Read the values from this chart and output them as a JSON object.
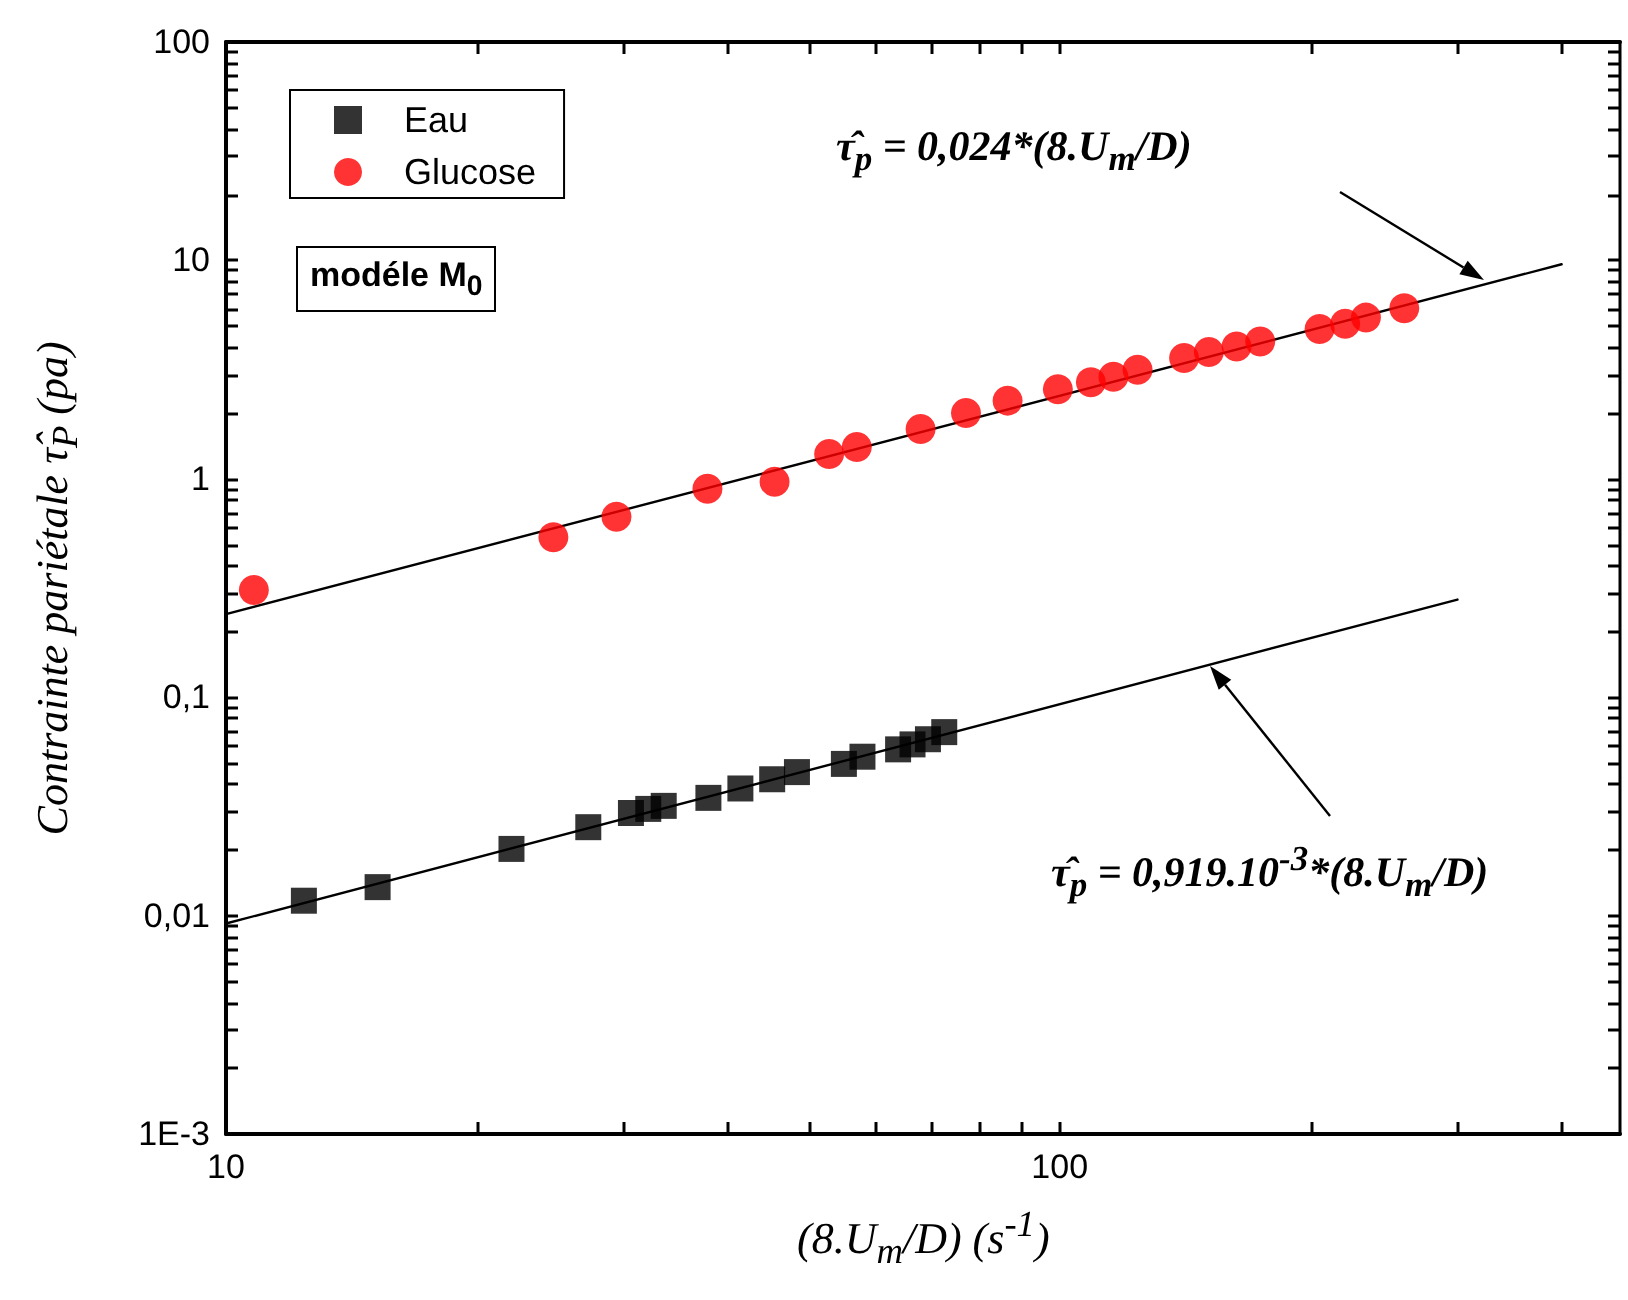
{
  "chart_data": {
    "type": "scatter",
    "xlabel": "(8.U$_{m}$/D)  (s$^{-1}$)",
    "ylabel": "Contrainte pariétale  τ̂$_{P}$ (pa)",
    "log": "xy",
    "grid": false,
    "legend": "top left",
    "xlim": [
      10,
      470
    ],
    "xticks": [
      10,
      {
        "value": 20,
        "label": null
      },
      {
        "value": 30,
        "label": null
      },
      {
        "value": 40,
        "label": null
      },
      {
        "value": 50,
        "label": null
      },
      {
        "value": 60,
        "label": null
      },
      {
        "value": 70,
        "label": null
      },
      {
        "value": 80,
        "label": null
      },
      {
        "value": 90,
        "label": null
      },
      100,
      {
        "value": 200,
        "label": null
      },
      {
        "value": 300,
        "label": null
      },
      {
        "value": 400,
        "label": null
      }
    ],
    "ylim": [
      0.001,
      100
    ],
    "yticks": [
      {
        "value": 0.001,
        "label": "1E-3"
      },
      {
        "value": 0.002,
        "label": null
      },
      {
        "value": 0.003,
        "label": null
      },
      {
        "value": 0.004,
        "label": null
      },
      {
        "value": 0.005,
        "label": null
      },
      {
        "value": 0.006,
        "label": null
      },
      {
        "value": 0.007,
        "label": null
      },
      {
        "value": 0.008,
        "label": null
      },
      {
        "value": 0.009,
        "label": null
      },
      {
        "value": 0.01,
        "label": "0,01"
      },
      {
        "value": 0.02,
        "label": null
      },
      {
        "value": 0.03,
        "label": null
      },
      {
        "value": 0.04,
        "label": null
      },
      {
        "value": 0.05,
        "label": null
      },
      {
        "value": 0.06,
        "label": null
      },
      {
        "value": 0.07,
        "label": null
      },
      {
        "value": 0.08,
        "label": null
      },
      {
        "value": 0.09,
        "label": null
      },
      {
        "value": 0.1,
        "label": "0,1"
      },
      {
        "value": 0.2,
        "label": null
      },
      {
        "value": 0.3,
        "label": null
      },
      {
        "value": 0.4,
        "label": null
      },
      {
        "value": 0.5,
        "label": null
      },
      {
        "value": 0.6,
        "label": null
      },
      {
        "value": 0.7,
        "label": null
      },
      {
        "value": 0.8,
        "label": null
      },
      {
        "value": 0.9,
        "label": null
      },
      1,
      {
        "value": 2,
        "label": null
      },
      {
        "value": 3,
        "label": null
      },
      {
        "value": 4,
        "label": null
      },
      {
        "value": 5,
        "label": null
      },
      {
        "value": 6,
        "label": null
      },
      {
        "value": 7,
        "label": null
      },
      {
        "value": 8,
        "label": null
      },
      {
        "value": 9,
        "label": null
      },
      10,
      {
        "value": 20,
        "label": null
      },
      {
        "value": 30,
        "label": null
      },
      {
        "value": 40,
        "label": null
      },
      {
        "value": 50,
        "label": null
      },
      {
        "value": 60,
        "label": null
      },
      {
        "value": 70,
        "label": null
      },
      {
        "value": 80,
        "label": null
      },
      {
        "value": 90,
        "label": null
      },
      100
    ],
    "series": [
      {
        "name": "Eau",
        "color": "#000000",
        "marker": "square",
        "x": [
          12.4,
          15.2,
          22.0,
          27.2,
          30.6,
          32.1,
          33.5,
          37.9,
          41.4,
          45.2,
          48.4,
          55.1,
          58.0,
          64.0,
          66.6,
          69.5,
          72.7
        ],
        "values": [
          0.0117,
          0.0135,
          0.0202,
          0.0254,
          0.0295,
          0.0308,
          0.0318,
          0.0346,
          0.0382,
          0.0421,
          0.0454,
          0.0495,
          0.0534,
          0.0577,
          0.0608,
          0.0642,
          0.0692
        ]
      },
      {
        "name": "Glucose",
        "color": "#ff0000",
        "marker": "circle",
        "x": [
          10.8,
          24.7,
          29.4,
          37.8,
          45.5,
          52.9,
          57.1,
          68.1,
          77.2,
          86.6,
          99.5,
          109,
          116,
          124,
          141,
          151,
          163,
          174,
          205,
          220,
          233,
          259
        ],
        "values": [
          0.31,
          0.54,
          0.67,
          0.9,
          0.97,
          1.3,
          1.4,
          1.69,
          2.0,
          2.28,
          2.57,
          2.77,
          2.93,
          3.16,
          3.57,
          3.81,
          4.03,
          4.25,
          4.85,
          5.13,
          5.47,
          6.04
        ]
      },
      {
        "type": "line",
        "color": "#000000",
        "marker": "none",
        "line_style": "solid",
        "x": [
          10,
          400
        ],
        "values": [
          0.24,
          9.6
        ]
      },
      {
        "type": "line",
        "color": "#000000",
        "marker": "none",
        "line_style": "solid",
        "x": [
          10,
          300
        ],
        "values": [
          0.0092,
          0.28
        ]
      }
    ],
    "annotations": [
      "τ̂$_{p}$ = 0,024*(8.U$_{m}$/D)",
      "τ̂$_{p}$ = 0,919.10$^{-3}$*(8.U$_{m}$/D)",
      "modéle M$_{0}$"
    ]
  }
}
